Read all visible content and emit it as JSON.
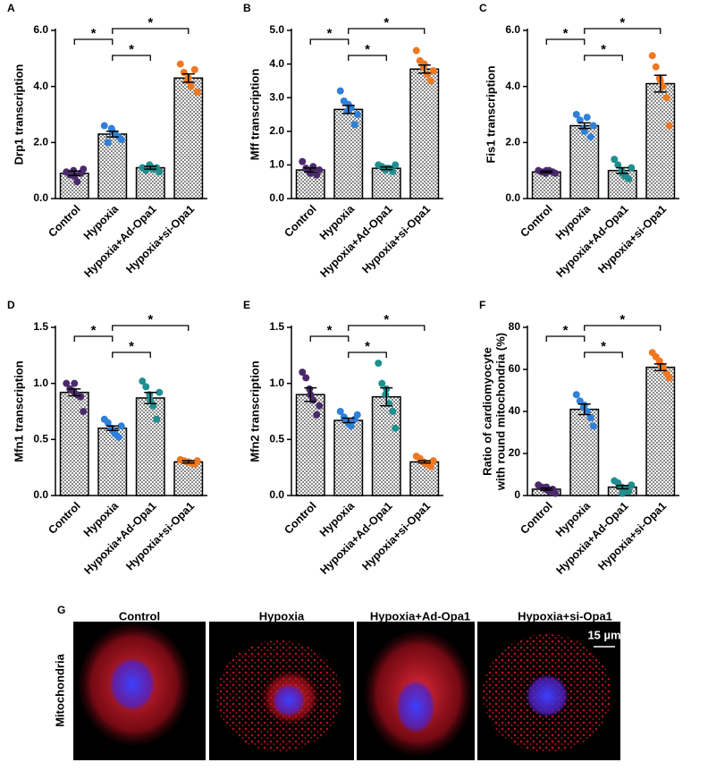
{
  "chart_data": [
    {
      "type": "bar",
      "panel": "A",
      "y_label": "Drp1 transcription",
      "categories": [
        "Control",
        "Hypoxia",
        "Hypoxia+Ad-Opa1",
        "Hypoxia+si-Opa1"
      ],
      "colors": [
        "#4b2a6b",
        "#2f80d8",
        "#1f8f8f",
        "#f07820"
      ],
      "values": [
        0.9,
        2.3,
        1.1,
        4.3
      ],
      "errors": [
        0.08,
        0.1,
        0.05,
        0.15
      ],
      "points": [
        [
          0.95,
          0.85,
          1.0,
          0.6,
          0.9,
          1.05,
          0.8
        ],
        [
          2.6,
          2.0,
          2.5,
          2.3,
          2.2,
          2.1,
          2.4
        ],
        [
          1.1,
          1.0,
          1.2,
          1.05,
          1.1,
          0.95,
          1.15
        ],
        [
          4.8,
          4.5,
          4.2,
          4.0,
          4.6,
          3.8,
          4.3
        ]
      ],
      "ylim": [
        0,
        6
      ],
      "yticks": [
        {
          "value": 0,
          "label": "0.0"
        },
        {
          "value": 2,
          "label": "2.0"
        },
        {
          "value": 4,
          "label": "4.0"
        },
        {
          "value": 6,
          "label": "6.0"
        }
      ],
      "significance_labels": [
        "*",
        "*",
        "*"
      ]
    },
    {
      "type": "bar",
      "panel": "B",
      "y_label": "Mff transcription",
      "categories": [
        "Control",
        "Hypoxia",
        "Hypoxia+Ad-Opa1",
        "Hypoxia+si-Opa1"
      ],
      "colors": [
        "#4b2a6b",
        "#2f80d8",
        "#1f8f8f",
        "#f07820"
      ],
      "values": [
        0.85,
        2.65,
        0.9,
        3.85
      ],
      "errors": [
        0.06,
        0.12,
        0.04,
        0.12
      ],
      "points": [
        [
          1.1,
          0.9,
          0.8,
          0.95,
          0.7,
          0.85,
          0.75
        ],
        [
          3.2,
          2.9,
          2.6,
          2.7,
          2.2,
          2.5,
          2.8
        ],
        [
          1.0,
          0.95,
          0.85,
          0.9,
          0.8,
          1.0,
          0.9
        ],
        [
          4.4,
          4.1,
          3.9,
          3.7,
          3.5,
          3.8,
          4.0
        ]
      ],
      "ylim": [
        0,
        5
      ],
      "yticks": [
        {
          "value": 0,
          "label": "0.0"
        },
        {
          "value": 1,
          "label": "1.0"
        },
        {
          "value": 2,
          "label": "2.0"
        },
        {
          "value": 3,
          "label": "3.0"
        },
        {
          "value": 4,
          "label": "4.0"
        },
        {
          "value": 5,
          "label": "5.0"
        }
      ],
      "significance_labels": [
        "*",
        "*",
        "*"
      ]
    },
    {
      "type": "bar",
      "panel": "C",
      "y_label": "Fis1 transcription",
      "categories": [
        "Control",
        "Hypoxia",
        "Hypoxia+Ad-Opa1",
        "Hypoxia+si-Opa1"
      ],
      "colors": [
        "#4b2a6b",
        "#2f80d8",
        "#1f8f8f",
        "#f07820"
      ],
      "values": [
        0.95,
        2.6,
        1.0,
        4.1
      ],
      "errors": [
        0.03,
        0.1,
        0.1,
        0.3
      ],
      "points": [
        [
          1.0,
          0.95,
          0.9,
          1.0,
          0.95,
          0.9,
          1.0
        ],
        [
          3.0,
          2.8,
          2.5,
          2.9,
          2.2,
          2.6,
          2.4
        ],
        [
          1.4,
          1.2,
          1.0,
          0.8,
          0.7,
          1.1,
          0.9
        ],
        [
          5.1,
          4.7,
          4.3,
          4.0,
          3.6,
          2.6,
          4.2
        ]
      ],
      "ylim": [
        0,
        6
      ],
      "yticks": [
        {
          "value": 0,
          "label": "0.0"
        },
        {
          "value": 2,
          "label": "2.0"
        },
        {
          "value": 4,
          "label": "4.0"
        },
        {
          "value": 6,
          "label": "6.0"
        }
      ],
      "significance_labels": [
        "*",
        "*",
        "*"
      ]
    },
    {
      "type": "bar",
      "panel": "D",
      "y_label": "Mfn1 transcription",
      "categories": [
        "Control",
        "Hypoxia",
        "Hypoxia+Ad-Opa1",
        "Hypoxia+si-Opa1"
      ],
      "colors": [
        "#4b2a6b",
        "#2f80d8",
        "#1f8f8f",
        "#f07820"
      ],
      "values": [
        0.92,
        0.6,
        0.87,
        0.3
      ],
      "errors": [
        0.03,
        0.02,
        0.05,
        0.01
      ],
      "points": [
        [
          1.0,
          0.95,
          0.93,
          0.9,
          0.88,
          0.75,
          1.0
        ],
        [
          0.68,
          0.65,
          0.6,
          0.55,
          0.52,
          0.62,
          0.58
        ],
        [
          1.02,
          0.97,
          0.9,
          0.8,
          0.68,
          0.92,
          0.85
        ],
        [
          0.32,
          0.31,
          0.3,
          0.29,
          0.28,
          0.31,
          0.3
        ]
      ],
      "ylim": [
        0,
        1.5
      ],
      "yticks": [
        {
          "value": 0,
          "label": "0.0"
        },
        {
          "value": 0.5,
          "label": "0.5"
        },
        {
          "value": 1,
          "label": "1.0"
        },
        {
          "value": 1.5,
          "label": "1.5"
        }
      ],
      "significance_labels": [
        "*",
        "*",
        "*"
      ]
    },
    {
      "type": "bar",
      "panel": "E",
      "y_label": "Mfn2 transcription",
      "categories": [
        "Control",
        "Hypoxia",
        "Hypoxia+Ad-Opa1",
        "Hypoxia+si-Opa1"
      ],
      "colors": [
        "#4b2a6b",
        "#2f80d8",
        "#1f8f8f",
        "#f07820"
      ],
      "values": [
        0.9,
        0.67,
        0.88,
        0.3
      ],
      "errors": [
        0.06,
        0.02,
        0.08,
        0.01
      ],
      "points": [
        [
          1.1,
          1.05,
          0.95,
          0.85,
          0.72,
          0.8,
          0.9
        ],
        [
          0.75,
          0.7,
          0.66,
          0.62,
          0.68,
          0.72,
          0.64
        ],
        [
          1.18,
          1.0,
          0.9,
          0.82,
          0.75,
          0.6,
          0.95
        ],
        [
          0.35,
          0.33,
          0.3,
          0.28,
          0.26,
          0.31,
          0.29
        ]
      ],
      "ylim": [
        0,
        1.5
      ],
      "yticks": [
        {
          "value": 0,
          "label": "0.0"
        },
        {
          "value": 0.5,
          "label": "0.5"
        },
        {
          "value": 1,
          "label": "1.0"
        },
        {
          "value": 1.5,
          "label": "1.5"
        }
      ],
      "significance_labels": [
        "*",
        "*",
        "*"
      ]
    },
    {
      "type": "bar",
      "panel": "F",
      "y_label": [
        "Ratio of cardiomyocyte",
        "with round mitochondria (%)"
      ],
      "categories": [
        "Control",
        "Hypoxia",
        "Hypoxia+Ad-Opa1",
        "Hypoxia+si-Opa1"
      ],
      "colors": [
        "#4b2a6b",
        "#2f80d8",
        "#1f8f8f",
        "#f07820"
      ],
      "values": [
        3,
        41,
        4,
        61
      ],
      "errors": [
        0.5,
        2.5,
        0.8,
        1.6
      ],
      "points": [
        [
          5,
          4,
          3,
          2,
          3,
          1,
          4
        ],
        [
          48,
          45,
          42,
          40,
          37,
          33,
          43
        ],
        [
          7,
          6,
          4,
          3,
          2,
          5,
          1
        ],
        [
          68,
          66,
          64,
          61,
          58,
          56,
          62
        ]
      ],
      "ylim": [
        0,
        80
      ],
      "yticks": [
        0,
        20,
        40,
        60,
        80
      ],
      "significance_labels": [
        "*",
        "*",
        "*"
      ]
    }
  ],
  "images": {
    "panel": "G",
    "row_label": "Mitochondria",
    "columns": [
      "Control",
      "Hypoxia",
      "Hypoxia+Ad-Opa1",
      "Hypoxia+si-Opa1"
    ],
    "scale_bar": "15 µm"
  }
}
